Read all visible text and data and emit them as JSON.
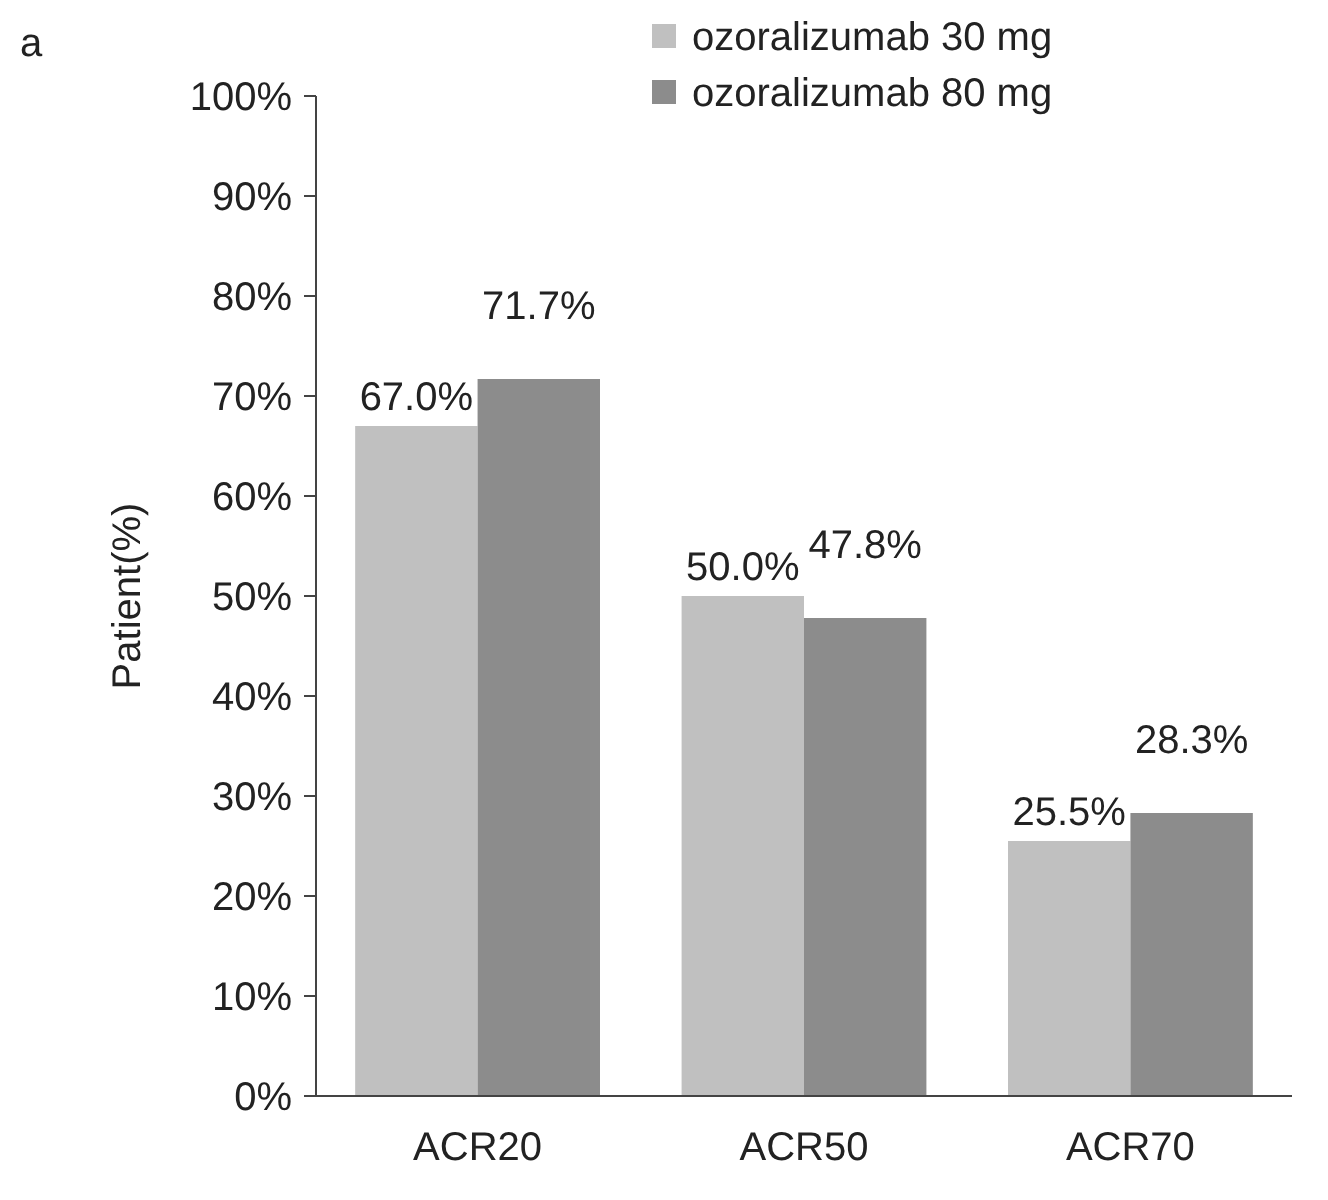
{
  "chart_data": {
    "type": "bar",
    "title": "a",
    "ylabel": "Patient(%)",
    "categories": [
      "ACR20",
      "ACR50",
      "ACR70"
    ],
    "series": [
      {
        "name": "ozoralizumab 30 mg",
        "color": "#c0c0c0",
        "values": [
          67.0,
          50.0,
          25.5
        ],
        "value_labels": [
          "67.0%",
          "50.0%",
          "25.5%"
        ]
      },
      {
        "name": "ozoralizumab 80 mg",
        "color": "#8c8c8c",
        "values": [
          71.7,
          47.8,
          28.3
        ],
        "value_labels": [
          "71.7%",
          "47.8%",
          "28.3%"
        ]
      }
    ],
    "ylim": [
      0,
      100
    ],
    "yticks": [
      {
        "value": 0,
        "label": "0%"
      },
      {
        "value": 10,
        "label": "10%"
      },
      {
        "value": 20,
        "label": "20%"
      },
      {
        "value": 30,
        "label": "30%"
      },
      {
        "value": 40,
        "label": "40%"
      },
      {
        "value": 50,
        "label": "50%"
      },
      {
        "value": 60,
        "label": "60%"
      },
      {
        "value": 70,
        "label": "70%"
      },
      {
        "value": 80,
        "label": "80%"
      },
      {
        "value": 90,
        "label": "90%"
      },
      {
        "value": 100,
        "label": "100%"
      }
    ],
    "grid": false,
    "legend": "top right"
  }
}
